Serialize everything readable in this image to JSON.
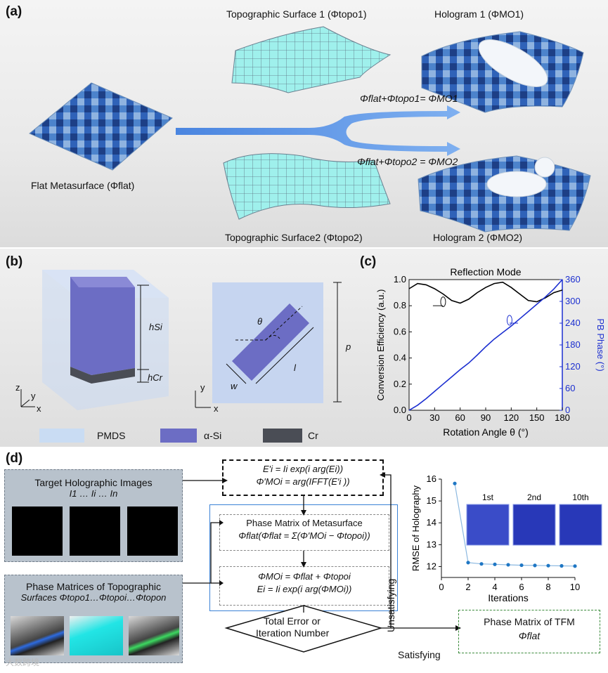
{
  "panel_a": {
    "label": "(a)",
    "topo1_title": "Topographic Surface 1 (Φtopo1)",
    "hologram1_title": "Hologram 1 (ΦMO1)",
    "flat_caption": "Flat Metasurface (Φflat)",
    "eq1": "Φflat+Φtopo1= ΦMO1",
    "eq2": "Φflat+Φtopo2 = ΦMO2",
    "topo2_title": "Topographic Surface2 (Φtopo2)",
    "hologram2_title": "Hologram 2 (ΦMO2)"
  },
  "panel_b": {
    "label": "(b)",
    "h_si": "hSi",
    "h_cr": "hCr",
    "axis_z": "z",
    "axis_y": "y",
    "axis_x": "x",
    "theta": "θ",
    "w": "w",
    "l": "l",
    "p": "p",
    "legend": [
      "PMDS",
      "α-Si",
      "Cr"
    ]
  },
  "panel_c": {
    "label": "(c)"
  },
  "chart_data": [
    {
      "type": "line",
      "title": "Reflection Mode",
      "xlabel": "Rotation Angle θ (°)",
      "ylabel_left": "Conversion Efficiency (a.u.)",
      "ylabel_right": "PB Phase (°)",
      "xlim": [
        0,
        180
      ],
      "ylim_left": [
        0,
        1.0
      ],
      "ylim_right": [
        0,
        360
      ],
      "xticks": [
        0,
        30,
        60,
        90,
        120,
        150,
        180
      ],
      "yticks_left": [
        0.0,
        0.2,
        0.4,
        0.6,
        0.8,
        1.0
      ],
      "yticks_right": [
        0,
        60,
        120,
        180,
        240,
        300,
        360
      ],
      "series": [
        {
          "axis": "left",
          "color": "#000000",
          "x": [
            0,
            10,
            20,
            30,
            40,
            50,
            60,
            70,
            80,
            90,
            100,
            110,
            120,
            130,
            140,
            150,
            160,
            170,
            180
          ],
          "values": [
            0.93,
            0.97,
            0.96,
            0.93,
            0.89,
            0.84,
            0.82,
            0.85,
            0.9,
            0.94,
            0.97,
            0.98,
            0.94,
            0.89,
            0.84,
            0.83,
            0.86,
            0.9,
            0.92
          ]
        },
        {
          "axis": "right",
          "color": "#1c2fd0",
          "x": [
            0,
            10,
            20,
            30,
            40,
            50,
            60,
            70,
            80,
            90,
            100,
            110,
            120,
            130,
            140,
            150,
            160,
            170,
            180
          ],
          "values": [
            0,
            14,
            32,
            52,
            72,
            92,
            112,
            130,
            152,
            175,
            196,
            214,
            232,
            252,
            272,
            292,
            312,
            334,
            360
          ]
        }
      ]
    },
    {
      "type": "scatter",
      "xlabel": "Iterations",
      "ylabel": "RMSE of Holography",
      "xlim": [
        0,
        10
      ],
      "ylim": [
        11.5,
        16
      ],
      "xticks": [
        0,
        2,
        4,
        6,
        8,
        10
      ],
      "yticks": [
        12,
        13,
        14,
        15,
        16
      ],
      "x": [
        1,
        2,
        3,
        4,
        5,
        6,
        7,
        8,
        9,
        10
      ],
      "values": [
        15.8,
        12.18,
        12.12,
        12.1,
        12.08,
        12.06,
        12.05,
        12.04,
        12.03,
        12.02
      ],
      "inset_labels": [
        "1st",
        "2nd",
        "10th"
      ]
    }
  ],
  "panel_d": {
    "label": "(d)",
    "target_title": "Target Holographic Images",
    "target_sub": "I1 … Ii … In",
    "phase_topo_title": "Phase Matrices of Topographic",
    "phase_topo_sub": "Surfaces Φtopo1…Φtopoi…Φtopon",
    "eq_top1": "E′i = Ii exp(i arg(Ei))",
    "eq_top2": "Φ′MOi = arg(IFFT(E′i ))",
    "pm_title": "Phase Matrix of Metasurface",
    "pm_eq": "Φflat(Φflat = Σ(Φ′MOi − Φtopoi))",
    "mo_eq1": "ΦMOi = Φflat + Φtopoi",
    "mo_eq2": "Ei = Ii exp(i arg(ΦMOi))",
    "decision1": "Total Error or",
    "decision2": "Iteration Number",
    "unsatisfying": "Unsatisfying",
    "satisfying": "Satisfying",
    "tfm_title": "Phase Matrix of TFM",
    "tfm_sub": "Φflat",
    "watermark": "大数跨境"
  }
}
